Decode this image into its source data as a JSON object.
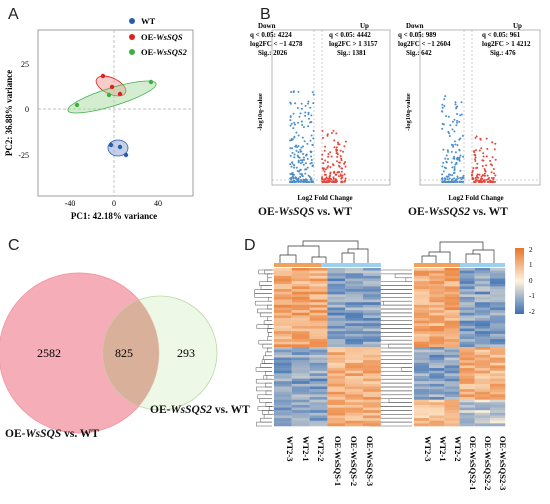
{
  "panels": {
    "a": "A",
    "b": "B",
    "c": "C",
    "d": "D"
  },
  "pca": {
    "legend": [
      "WT",
      "OE-WsSQS",
      "OE-WsSQS2"
    ],
    "colors": {
      "WT": "#2a5caa",
      "OE1": "#e02020",
      "OE2": "#3cb043"
    },
    "xlabel": "PC1: 42.18% variance",
    "ylabel": "PC2: 36.88% variance",
    "xticks": [
      "-40",
      "0",
      "40"
    ],
    "yticks": [
      "25",
      "0",
      "-25"
    ]
  },
  "volcano1": {
    "down": [
      "Down",
      "q < 0.05: 4224",
      "log2FC < −1 4278",
      "Sig.: 2026"
    ],
    "up": [
      "Up",
      "q < 0.05: 4442",
      "log2FC > 1 3157",
      "Sig.: 1381"
    ],
    "ylabel": "-log10q-value",
    "xlabel": "Log2 Fold Change",
    "caption_pre": "OE-",
    "caption_it": "WsSQS",
    "caption_post": " vs. WT"
  },
  "volcano2": {
    "down": [
      "Down",
      "q < 0.05: 989",
      "log2FC < −1 2604",
      "Sig.: 642"
    ],
    "up": [
      "Up",
      "q < 0.05: 961",
      "log2FC > 1 4212",
      "Sig.: 476"
    ],
    "ylabel": "-log10q-value",
    "xlabel": "Log2 Fold Change",
    "caption_pre": "OE-",
    "caption_it": "WsSQS2",
    "caption_post": " vs. WT"
  },
  "venn": {
    "left_only": "2582",
    "overlap": "825",
    "right_only": "293",
    "label1_pre": "OE-",
    "label1_it": "WsSQS",
    "label1_post": " vs. WT",
    "label2_pre": "OE-",
    "label2_it": "WsSQS2",
    "label2_post": " vs. WT"
  },
  "heatmap": {
    "scale": [
      "2",
      "1",
      "0",
      "-1",
      "-2"
    ],
    "cols1": [
      "WT2-3",
      "WT2-1",
      "WT2-2",
      "OE-WsSQS-1",
      "OE-WsSQS-2",
      "OE-WsSQS-3"
    ],
    "cols2": [
      "WT2-3",
      "WT2-1",
      "WT2-2",
      "OE-WsSQS2-1",
      "OE-WsSQS2-2",
      "OE-WsSQS2-3"
    ]
  }
}
